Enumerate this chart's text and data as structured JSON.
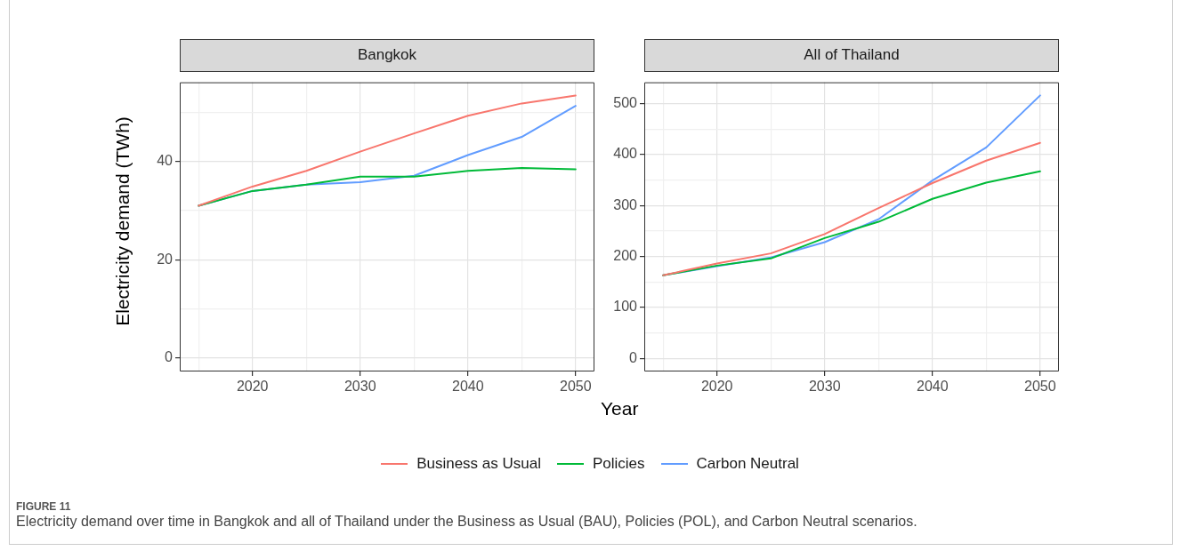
{
  "chart_data": [
    {
      "type": "line",
      "title": "Bangkok",
      "ylabel": "Electricity demand (TWh)",
      "xlabel": "Year",
      "x": [
        2015,
        2020,
        2025,
        2030,
        2035,
        2040,
        2045,
        2050
      ],
      "series": [
        {
          "name": "Business as Usual",
          "color": "#f8766d",
          "values": [
            31.0,
            34.9,
            38.1,
            42.0,
            45.7,
            49.3,
            51.8,
            53.4
          ]
        },
        {
          "name": "Policies",
          "color": "#00ba38",
          "values": [
            31.0,
            34.0,
            35.3,
            36.9,
            36.9,
            38.1,
            38.7,
            38.4
          ]
        },
        {
          "name": "Carbon Neutral",
          "color": "#619cff",
          "values": [
            31.0,
            34.0,
            35.3,
            35.8,
            37.1,
            41.3,
            45.0,
            51.3
          ]
        }
      ],
      "xlim": [
        2013.25,
        2051.75
      ],
      "ylim": [
        -2.7,
        56.1
      ],
      "xticks": [
        {
          "value": 2015,
          "label": null
        },
        2020,
        {
          "value": 2025,
          "label": null
        },
        2030,
        {
          "value": 2035,
          "label": null
        },
        2040,
        {
          "value": 2045,
          "label": null
        },
        2050
      ],
      "yticks": [
        0,
        {
          "value": 10,
          "label": null
        },
        20,
        {
          "value": 30,
          "label": null
        },
        40,
        {
          "value": 50,
          "label": null
        }
      ],
      "grid": true,
      "legend": "bottom",
      "marker": "none",
      "line_style": "solid",
      "annotations": [
        "FIGURE 11",
        "Electricity demand over time in Bangkok and all of Thailand under the Business as Usual (BAU), Policies (POL), and Carbon Neutral scenarios."
      ]
    },
    {
      "type": "line",
      "title": "All of Thailand",
      "x": [
        2015,
        2020,
        2025,
        2030,
        2035,
        2040,
        2045,
        2050
      ],
      "series": [
        {
          "color": "#f8766d",
          "values": [
            163,
            186,
            206,
            244,
            295,
            344,
            388,
            423
          ]
        },
        {
          "color": "#00ba38",
          "values": [
            163,
            182,
            196,
            236,
            268,
            313,
            345,
            367
          ]
        },
        {
          "color": "#619cff",
          "values": [
            163,
            181,
            198,
            228,
            273,
            349,
            414,
            516
          ]
        }
      ],
      "xlim": [
        2013.25,
        2051.75
      ],
      "ylim": [
        -25.8,
        541.8
      ],
      "xticks": [
        {
          "value": 2015,
          "label": null
        },
        2020,
        {
          "value": 2025,
          "label": null
        },
        2030,
        {
          "value": 2035,
          "label": null
        },
        2040,
        {
          "value": 2045,
          "label": null
        },
        2050
      ],
      "yticks": [
        0,
        {
          "value": 50,
          "label": null
        },
        100,
        {
          "value": 150,
          "label": null
        },
        200,
        {
          "value": 250,
          "label": null
        },
        300,
        {
          "value": 350,
          "label": null
        },
        400,
        {
          "value": 450,
          "label": null
        },
        500
      ],
      "grid": true,
      "marker": "none",
      "line_style": "solid"
    }
  ]
}
